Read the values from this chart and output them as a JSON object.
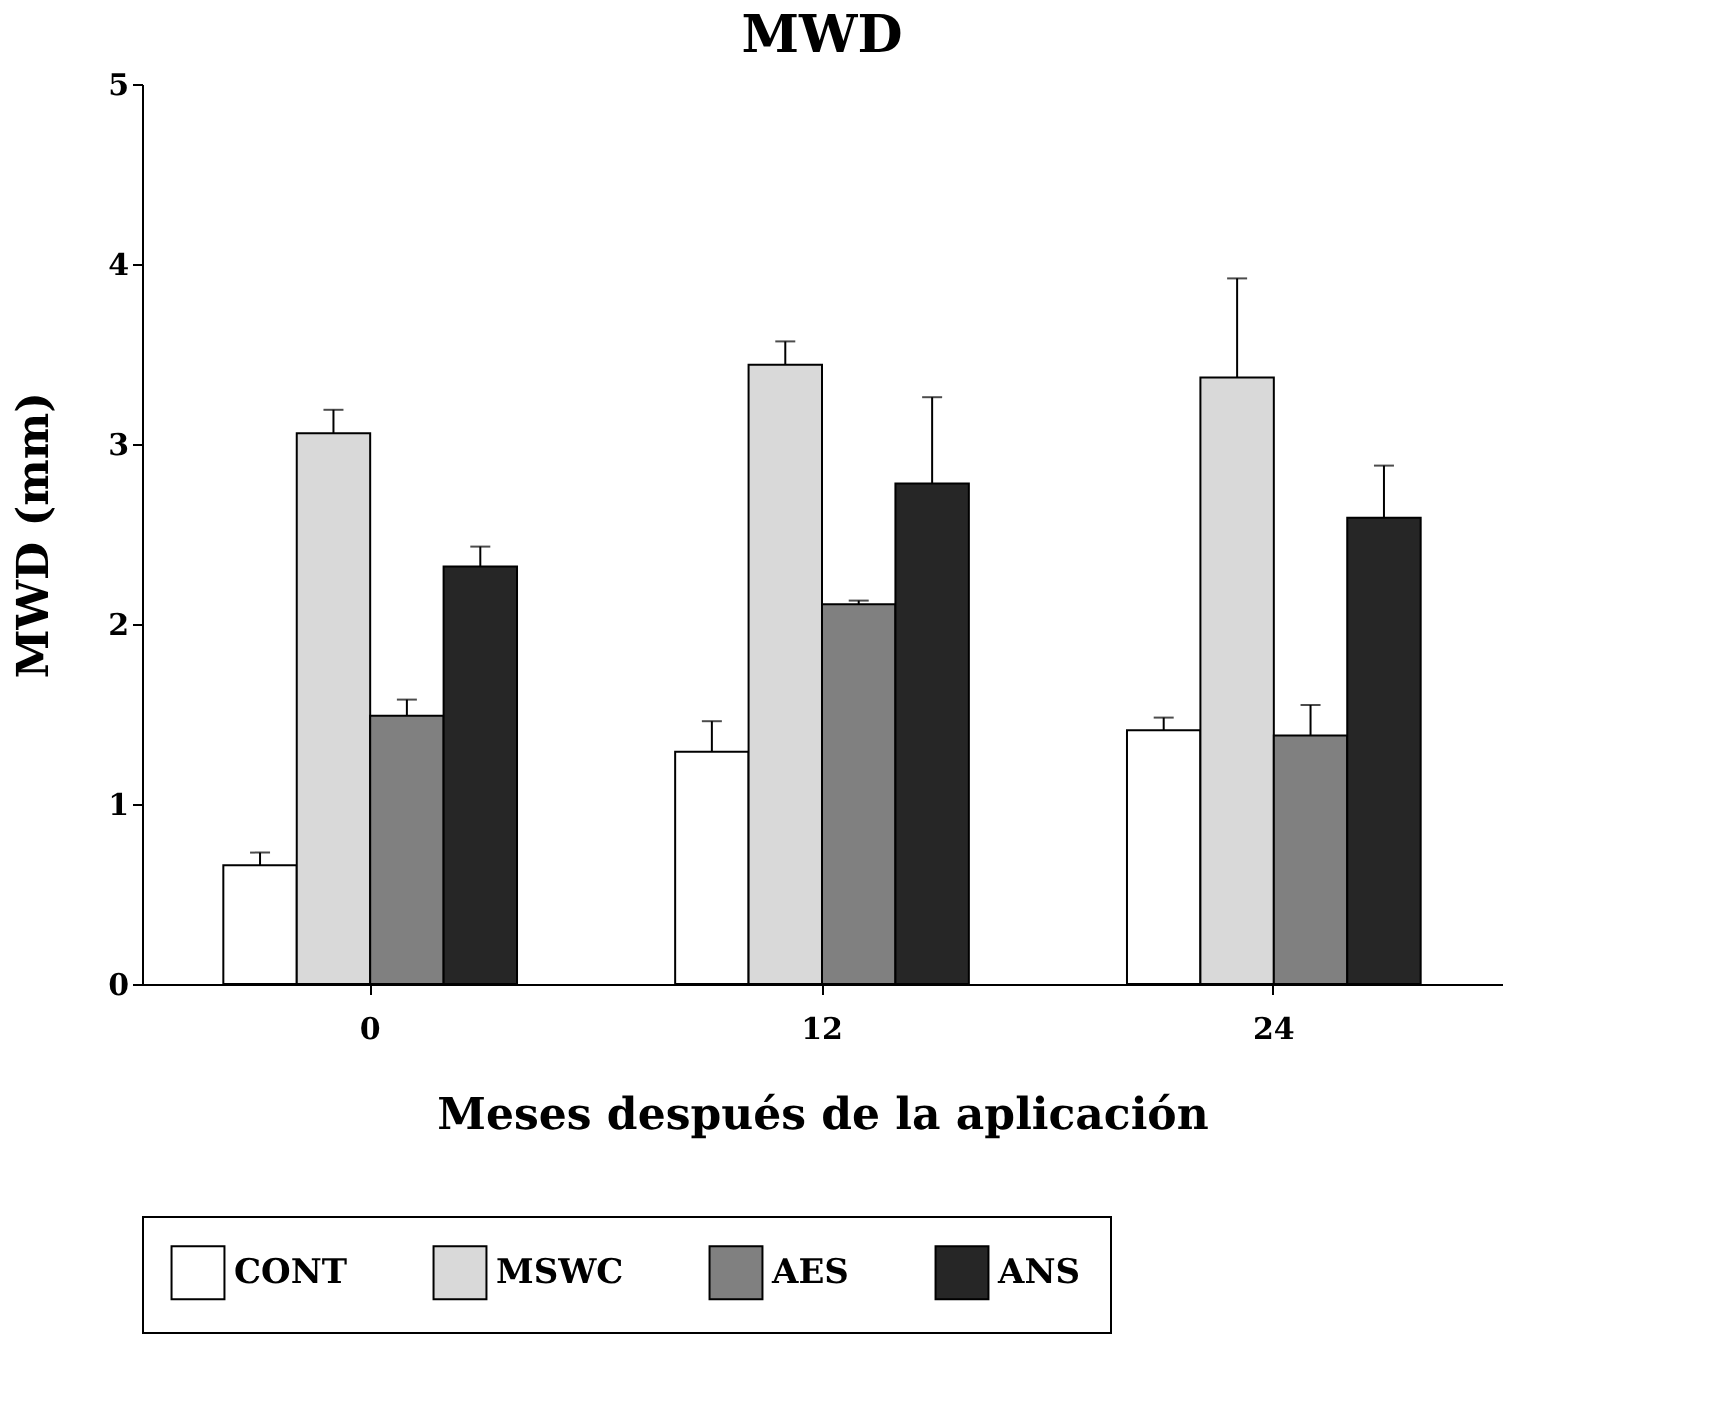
{
  "chart_data": {
    "type": "bar",
    "title": "MWD",
    "xlabel": "Meses después de la aplicación",
    "ylabel": "MWD (mm)",
    "categories": [
      "0",
      "12",
      "24"
    ],
    "series": [
      {
        "name": "CONT",
        "color": "#ffffff",
        "values": [
          0.66,
          1.29,
          1.41
        ],
        "errors": [
          [
            0.66,
            0.73
          ],
          [
            1.29,
            1.46
          ],
          [
            1.41,
            1.48
          ]
        ]
      },
      {
        "name": "MSWC",
        "color": "#d9d9d9",
        "values": [
          3.06,
          3.44,
          3.37
        ],
        "errors": [
          [
            3.06,
            3.19
          ],
          [
            3.44,
            3.57
          ],
          [
            3.37,
            3.92
          ]
        ]
      },
      {
        "name": "AES",
        "color": "#808080",
        "values": [
          1.49,
          2.11,
          1.38
        ],
        "errors": [
          [
            1.49,
            1.58
          ],
          [
            2.11,
            2.13
          ],
          [
            1.38,
            1.55
          ]
        ]
      },
      {
        "name": "ANS",
        "color": "#262626",
        "values": [
          2.32,
          2.78,
          2.59
        ],
        "errors": [
          [
            2.32,
            2.43
          ],
          [
            2.78,
            3.26
          ],
          [
            2.59,
            2.88
          ]
        ]
      }
    ],
    "ylim": [
      0,
      5
    ],
    "yticks": [
      0,
      1,
      2,
      3,
      4,
      5
    ],
    "grid": false,
    "legend": "bottom"
  }
}
